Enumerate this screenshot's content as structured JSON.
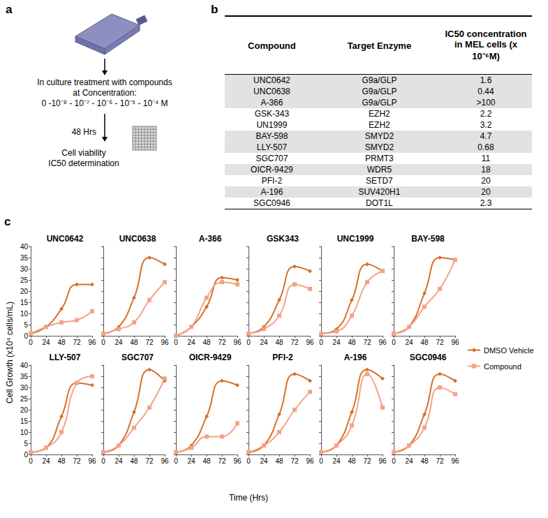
{
  "panel_a": {
    "label": "a",
    "treatment_lines": [
      "In culture treatment with compounds",
      "at Concentration:",
      "0 -10⁻⁸ - 10⁻⁷ - 10⁻⁶ - 10⁻⁵ - 10⁻⁴ M"
    ],
    "time_label": "48 Hrs",
    "result_lines": [
      "Cell viability",
      "IC50 determination"
    ]
  },
  "panel_b": {
    "label": "b",
    "header": [
      "Compound",
      "Target Enzyme",
      "IC50 concentration in MEL cells (x 10⁻⁶M)"
    ],
    "rows": [
      [
        "UNC0642",
        "G9a/GLP",
        1.6
      ],
      [
        "UNC0638",
        "G9a/GLP",
        0.44
      ],
      [
        "A-366",
        "G9a/GLP",
        ">100"
      ],
      [
        "GSK-343",
        "EZH2",
        2.2
      ],
      [
        "UN1999",
        "EZH2",
        3.2
      ],
      [
        "BAY-598",
        "SMYD2",
        4.7
      ],
      [
        "LLY-507",
        "SMYD2",
        0.68
      ],
      [
        "SGC707",
        "PRMT3",
        11
      ],
      [
        "OICR-9429",
        "WDR5",
        18
      ],
      [
        "PFI-2",
        "SETD7",
        20
      ],
      [
        "A-196",
        "SUV420H1",
        20
      ],
      [
        "SGC0946",
        "DOT1L",
        2.3
      ]
    ]
  },
  "panel_c": {
    "label": "c",
    "y_label": "Cell Growth (x10⁴ cells/mL)",
    "x_label": "Time (Hrs)",
    "legend": "right"
  },
  "chart_data": [
    {
      "type": "line",
      "title": "UNC0642",
      "x": [
        0,
        24,
        48,
        72,
        96
      ],
      "xlim": [
        0,
        96
      ],
      "xticks": [
        0,
        24,
        48,
        72,
        96
      ],
      "ylim": [
        0,
        40
      ],
      "yticks": [
        0,
        5,
        10,
        15,
        20,
        25,
        30,
        35,
        40
      ],
      "grid": false,
      "series": [
        {
          "name": "DMSO Vehicle",
          "color": "#d4712a",
          "marker": "diamond",
          "line_style": "smooth",
          "values": [
            1,
            4,
            12,
            23,
            23
          ]
        },
        {
          "name": "Compound",
          "color": "#f4a385",
          "marker": "square",
          "line_style": "smooth",
          "values": [
            1,
            4,
            6,
            7,
            11
          ]
        }
      ]
    },
    {
      "type": "line",
      "title": "UNC0638",
      "x": [
        0,
        24,
        48,
        72,
        96
      ],
      "xlim": [
        0,
        96
      ],
      "xticks": [
        0,
        24,
        48,
        72,
        96
      ],
      "ylim": [
        0,
        40
      ],
      "yticks": [
        0,
        5,
        10,
        15,
        20,
        25,
        30,
        35,
        40
      ],
      "grid": false,
      "tick_labels": "x",
      "series": [
        {
          "name": "DMSO Vehicle",
          "color": "#d4712a",
          "marker": "diamond",
          "line_style": "smooth",
          "values": [
            1,
            4,
            17,
            35,
            32
          ]
        },
        {
          "name": "Compound",
          "color": "#f4a385",
          "marker": "square",
          "line_style": "smooth",
          "values": [
            1,
            3,
            6,
            16,
            24
          ]
        }
      ]
    },
    {
      "type": "line",
      "title": "A-366",
      "x": [
        0,
        24,
        48,
        72,
        96
      ],
      "xlim": [
        0,
        96
      ],
      "xticks": [
        0,
        24,
        48,
        72,
        96
      ],
      "ylim": [
        0,
        40
      ],
      "yticks": [
        0,
        5,
        10,
        15,
        20,
        25,
        30,
        35,
        40
      ],
      "grid": false,
      "tick_labels": "x",
      "series": [
        {
          "name": "DMSO Vehicle",
          "color": "#d4712a",
          "marker": "diamond",
          "line_style": "smooth",
          "values": [
            0,
            4,
            13,
            26,
            25
          ]
        },
        {
          "name": "Compound",
          "color": "#f4a385",
          "marker": "square",
          "line_style": "smooth",
          "values": [
            0,
            4,
            17,
            24,
            23
          ]
        }
      ]
    },
    {
      "type": "line",
      "title": "GSK343",
      "x": [
        0,
        24,
        48,
        72,
        96
      ],
      "xlim": [
        0,
        96
      ],
      "xticks": [
        0,
        24,
        48,
        72,
        96
      ],
      "ylim": [
        0,
        40
      ],
      "yticks": [
        0,
        5,
        10,
        15,
        20,
        25,
        30,
        35,
        40
      ],
      "grid": false,
      "tick_labels": "x",
      "series": [
        {
          "name": "DMSO Vehicle",
          "color": "#d4712a",
          "marker": "diamond",
          "line_style": "smooth",
          "values": [
            1,
            4,
            16,
            31,
            29
          ]
        },
        {
          "name": "Compound",
          "color": "#f4a385",
          "marker": "square",
          "line_style": "smooth",
          "values": [
            1,
            3,
            9,
            23,
            21
          ]
        }
      ]
    },
    {
      "type": "line",
      "title": "UNC1999",
      "x": [
        0,
        24,
        48,
        72,
        96
      ],
      "xlim": [
        0,
        96
      ],
      "xticks": [
        0,
        24,
        48,
        72,
        96
      ],
      "ylim": [
        0,
        40
      ],
      "yticks": [
        0,
        5,
        10,
        15,
        20,
        25,
        30,
        35,
        40
      ],
      "grid": false,
      "tick_labels": "x",
      "series": [
        {
          "name": "DMSO Vehicle",
          "color": "#d4712a",
          "marker": "diamond",
          "line_style": "smooth",
          "values": [
            1,
            3,
            16,
            32,
            29
          ]
        },
        {
          "name": "Compound",
          "color": "#f4a385",
          "marker": "square",
          "line_style": "smooth",
          "values": [
            1,
            2,
            9,
            24,
            29
          ]
        }
      ]
    },
    {
      "type": "line",
      "title": "BAY-598",
      "x": [
        0,
        24,
        48,
        72,
        96
      ],
      "xlim": [
        0,
        96
      ],
      "xticks": [
        0,
        24,
        48,
        72,
        96
      ],
      "ylim": [
        0,
        40
      ],
      "yticks": [
        0,
        5,
        10,
        15,
        20,
        25,
        30,
        35,
        40
      ],
      "grid": false,
      "tick_labels": "x",
      "series": [
        {
          "name": "DMSO Vehicle",
          "color": "#d4712a",
          "marker": "diamond",
          "line_style": "smooth",
          "values": [
            1,
            4,
            19,
            35,
            34
          ]
        },
        {
          "name": "Compound",
          "color": "#f4a385",
          "marker": "square",
          "line_style": "smooth",
          "values": [
            1,
            4,
            13,
            21,
            34
          ]
        }
      ]
    },
    {
      "type": "line",
      "title": "LLY-507",
      "x": [
        0,
        24,
        48,
        72,
        96
      ],
      "xlim": [
        0,
        96
      ],
      "xticks": [
        0,
        24,
        48,
        72,
        96
      ],
      "ylim": [
        0,
        40
      ],
      "yticks": [
        0,
        5,
        10,
        15,
        20,
        25,
        30,
        35,
        40
      ],
      "grid": false,
      "series": [
        {
          "name": "DMSO Vehicle",
          "color": "#d4712a",
          "marker": "diamond",
          "line_style": "smooth",
          "values": [
            1,
            3,
            17,
            32,
            31
          ]
        },
        {
          "name": "Compound",
          "color": "#f4a385",
          "marker": "square",
          "line_style": "smooth",
          "values": [
            1,
            3,
            10,
            32,
            35
          ]
        }
      ]
    },
    {
      "type": "line",
      "title": "SGC707",
      "x": [
        0,
        24,
        48,
        72,
        96
      ],
      "xlim": [
        0,
        96
      ],
      "xticks": [
        0,
        24,
        48,
        72,
        96
      ],
      "ylim": [
        0,
        40
      ],
      "yticks": [
        0,
        5,
        10,
        15,
        20,
        25,
        30,
        35,
        40
      ],
      "grid": false,
      "tick_labels": "x",
      "series": [
        {
          "name": "DMSO Vehicle",
          "color": "#d4712a",
          "marker": "diamond",
          "line_style": "smooth",
          "values": [
            1,
            4,
            19,
            38,
            33
          ]
        },
        {
          "name": "Compound",
          "color": "#f4a385",
          "marker": "square",
          "line_style": "smooth",
          "values": [
            1,
            4,
            12,
            21,
            34
          ]
        }
      ]
    },
    {
      "type": "line",
      "title": "OICR-9429",
      "x": [
        0,
        24,
        48,
        72,
        96
      ],
      "xlim": [
        0,
        96
      ],
      "xticks": [
        0,
        24,
        48,
        72,
        96
      ],
      "ylim": [
        0,
        40
      ],
      "yticks": [
        0,
        5,
        10,
        15,
        20,
        25,
        30,
        35,
        40
      ],
      "grid": false,
      "tick_labels": "x",
      "series": [
        {
          "name": "DMSO Vehicle",
          "color": "#d4712a",
          "marker": "diamond",
          "line_style": "smooth",
          "values": [
            1,
            4,
            17,
            33,
            31
          ]
        },
        {
          "name": "Compound",
          "color": "#f4a385",
          "marker": "square",
          "line_style": "smooth",
          "values": [
            1,
            3,
            8,
            8,
            14
          ]
        }
      ]
    },
    {
      "type": "line",
      "title": "PFI-2",
      "x": [
        0,
        24,
        48,
        72,
        96
      ],
      "xlim": [
        0,
        96
      ],
      "xticks": [
        0,
        24,
        48,
        72,
        96
      ],
      "ylim": [
        0,
        40
      ],
      "yticks": [
        0,
        5,
        10,
        15,
        20,
        25,
        30,
        35,
        40
      ],
      "grid": false,
      "tick_labels": "x",
      "series": [
        {
          "name": "DMSO Vehicle",
          "color": "#d4712a",
          "marker": "diamond",
          "line_style": "smooth",
          "values": [
            1,
            4,
            18,
            36,
            33
          ]
        },
        {
          "name": "Compound",
          "color": "#f4a385",
          "marker": "square",
          "line_style": "smooth",
          "values": [
            1,
            4,
            10,
            20,
            28
          ]
        }
      ]
    },
    {
      "type": "line",
      "title": "A-196",
      "x": [
        0,
        24,
        48,
        72,
        96
      ],
      "xlim": [
        0,
        96
      ],
      "xticks": [
        0,
        24,
        48,
        72,
        96
      ],
      "ylim": [
        0,
        40
      ],
      "yticks": [
        0,
        5,
        10,
        15,
        20,
        25,
        30,
        35,
        40
      ],
      "grid": false,
      "tick_labels": "x",
      "series": [
        {
          "name": "DMSO Vehicle",
          "color": "#d4712a",
          "marker": "diamond",
          "line_style": "smooth",
          "values": [
            1,
            4,
            19,
            38,
            34
          ]
        },
        {
          "name": "Compound",
          "color": "#f4a385",
          "marker": "square",
          "line_style": "smooth",
          "values": [
            1,
            4,
            13,
            36,
            21
          ]
        }
      ]
    },
    {
      "type": "line",
      "title": "SGC0946",
      "x": [
        0,
        24,
        48,
        72,
        96
      ],
      "xlim": [
        0,
        96
      ],
      "xticks": [
        0,
        24,
        48,
        72,
        96
      ],
      "ylim": [
        0,
        40
      ],
      "yticks": [
        0,
        5,
        10,
        15,
        20,
        25,
        30,
        35,
        40
      ],
      "grid": false,
      "tick_labels": "x",
      "series": [
        {
          "name": "DMSO Vehicle",
          "color": "#d4712a",
          "marker": "diamond",
          "line_style": "smooth",
          "values": [
            1,
            4,
            18,
            36,
            33
          ]
        },
        {
          "name": "Compound",
          "color": "#f4a385",
          "marker": "square",
          "line_style": "smooth",
          "values": [
            1,
            4,
            12,
            30,
            27
          ]
        }
      ]
    }
  ]
}
